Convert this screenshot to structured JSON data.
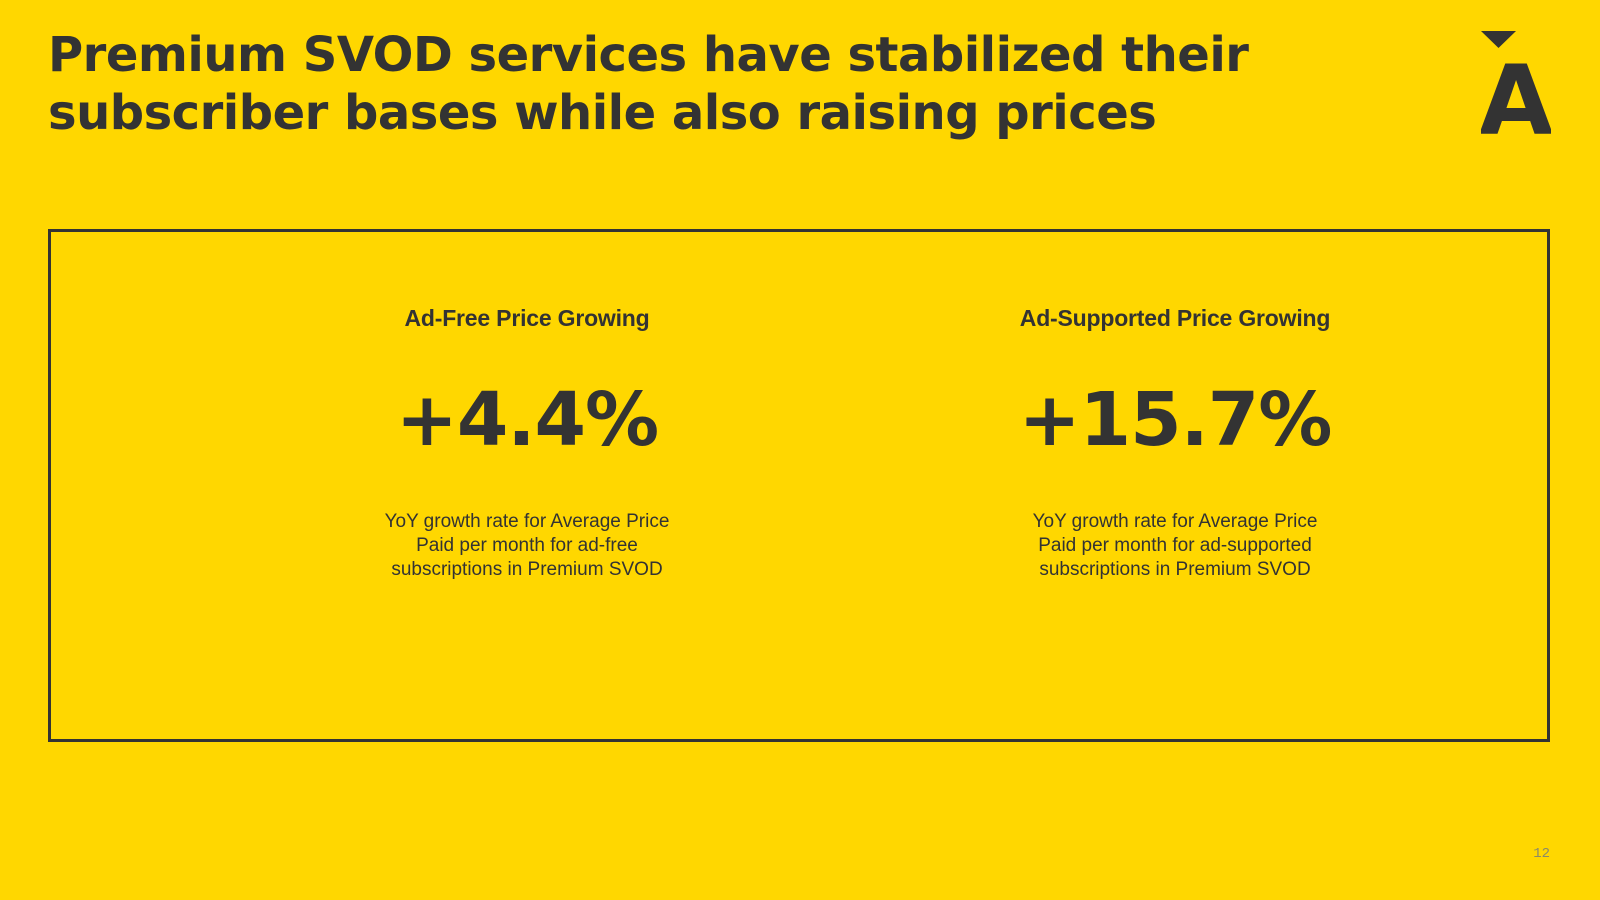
{
  "slide": {
    "title_lines": [
      "Premium SVOD services have stabilized their",
      "subscriber bases while also raising prices"
    ],
    "page_number": "12"
  },
  "logo": {
    "icon": "letter-a-with-triangle-logo",
    "letter": "A"
  },
  "stats": [
    {
      "heading": "Ad-Free Price Growing",
      "value": "+4.4%",
      "description_lines": [
        "YoY growth rate for Average Price",
        "Paid per month for ad-free",
        "subscriptions in Premium SVOD"
      ]
    },
    {
      "heading": "Ad-Supported Price Growing",
      "value": "+15.7%",
      "description_lines": [
        "YoY growth rate for Average Price",
        "Paid per month for ad-supported",
        "subscriptions in Premium SVOD"
      ]
    }
  ],
  "colors": {
    "background": "#FFD700",
    "text": "#333333"
  }
}
